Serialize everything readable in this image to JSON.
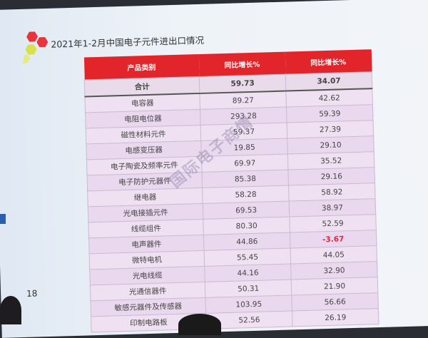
{
  "slide": {
    "title": "2021年1-2月中国电子元件进出口情况",
    "page_number": "18",
    "watermark": "国际电子商情",
    "accent_color": "#e2242b",
    "negative_color": "#e8243e"
  },
  "table": {
    "headers": [
      "产品类别",
      "同比增长%",
      "同比增长%"
    ],
    "total": {
      "name": "合计",
      "v1": "59.73",
      "v2": "34.07"
    },
    "rows": [
      {
        "name": "电容器",
        "v1": "89.27",
        "v2": "42.62"
      },
      {
        "name": "电阻电位器",
        "v1": "293.28",
        "v2": "59.39"
      },
      {
        "name": "磁性材料元件",
        "v1": "59.37",
        "v2": "27.39"
      },
      {
        "name": "电感变压器",
        "v1": "19.85",
        "v2": "29.10"
      },
      {
        "name": "电子陶瓷及频率元件",
        "v1": "69.97",
        "v2": "35.52"
      },
      {
        "name": "电子防护元器件",
        "v1": "85.38",
        "v2": "29.16"
      },
      {
        "name": "继电器",
        "v1": "58.28",
        "v2": "58.92"
      },
      {
        "name": "光电接插元件",
        "v1": "69.53",
        "v2": "38.97"
      },
      {
        "name": "线缆组件",
        "v1": "80.30",
        "v2": "52.59"
      },
      {
        "name": "电声器件",
        "v1": "44.86",
        "v2": "-3.67"
      },
      {
        "name": "微特电机",
        "v1": "55.45",
        "v2": "44.05"
      },
      {
        "name": "光电线缆",
        "v1": "44.16",
        "v2": "32.90"
      },
      {
        "name": "光通信器件",
        "v1": "50.31",
        "v2": "21.90"
      },
      {
        "name": "敏感元器件及传感器",
        "v1": "103.95",
        "v2": "56.66"
      },
      {
        "name": "印制电路板",
        "v1": "52.56",
        "v2": "26.19"
      }
    ]
  }
}
